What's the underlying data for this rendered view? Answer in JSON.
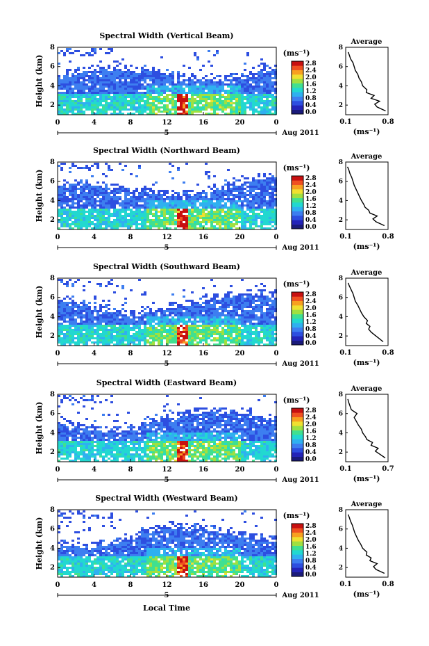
{
  "figure": {
    "ylabel": "Height (km)",
    "xlabel": "Local Time",
    "date_label": "Aug 2011",
    "day_marker": "5",
    "units": "(ms⁻¹)",
    "avg_title": "Average",
    "avg_units": "(ms⁻¹)"
  },
  "chart_data": [
    {
      "type": "heatmap",
      "title": "Spectral Width (Vertical Beam)",
      "x_ticks": [
        "0",
        "4",
        "8",
        "12",
        "16",
        "20",
        "0"
      ],
      "y_ticks": [
        "2",
        "4",
        "6",
        "8"
      ],
      "ylim": [
        1,
        8
      ],
      "colorbar_ticks": [
        "0.0",
        "0.4",
        "0.8",
        "1.2",
        "1.6",
        "2.0",
        "2.4",
        "2.8"
      ],
      "average": {
        "type": "line",
        "title": "Average",
        "x_ticks": [
          "0.1",
          "0.8"
        ],
        "y_ticks": [
          "2",
          "4",
          "6",
          "8"
        ],
        "xlim": [
          0.1,
          0.8
        ],
        "ylim": [
          1,
          8
        ],
        "x": [
          0.76,
          0.62,
          0.58,
          0.66,
          0.52,
          0.57,
          0.44,
          0.45,
          0.38,
          0.36,
          0.32,
          0.3,
          0.26,
          0.24,
          0.22,
          0.18,
          0.16,
          0.14
        ],
        "y": [
          1.4,
          1.8,
          2.1,
          2.4,
          2.7,
          3.0,
          3.3,
          3.6,
          4.0,
          4.4,
          4.8,
          5.2,
          5.6,
          6.0,
          6.4,
          6.8,
          7.2,
          7.5
        ]
      }
    },
    {
      "type": "heatmap",
      "title": "Spectral Width (Northward Beam)",
      "x_ticks": [
        "0",
        "4",
        "8",
        "12",
        "16",
        "20",
        "0"
      ],
      "y_ticks": [
        "2",
        "4",
        "6",
        "8"
      ],
      "ylim": [
        1,
        8
      ],
      "colorbar_ticks": [
        "0.0",
        "0.4",
        "0.8",
        "1.2",
        "1.6",
        "2.0",
        "2.4",
        "2.8"
      ],
      "average": {
        "type": "line",
        "title": "Average",
        "x_ticks": [
          "0.1",
          "0.8"
        ],
        "y_ticks": [
          "2",
          "4",
          "6",
          "8"
        ],
        "xlim": [
          0.1,
          0.8
        ],
        "ylim": [
          1,
          8
        ],
        "x": [
          0.74,
          0.6,
          0.55,
          0.62,
          0.5,
          0.48,
          0.42,
          0.4,
          0.36,
          0.33,
          0.3,
          0.27,
          0.24,
          0.22,
          0.2,
          0.17,
          0.15,
          0.13
        ],
        "y": [
          1.4,
          1.8,
          2.1,
          2.4,
          2.7,
          3.0,
          3.3,
          3.6,
          4.0,
          4.4,
          4.8,
          5.2,
          5.6,
          6.0,
          6.4,
          6.8,
          7.2,
          7.5
        ]
      }
    },
    {
      "type": "heatmap",
      "title": "Spectral Width (Southward Beam)",
      "x_ticks": [
        "0",
        "4",
        "8",
        "12",
        "16",
        "20",
        "0"
      ],
      "y_ticks": [
        "2",
        "4",
        "6",
        "8"
      ],
      "ylim": [
        1,
        8
      ],
      "colorbar_ticks": [
        "0.0",
        "0.4",
        "0.8",
        "1.2",
        "1.6",
        "2.0",
        "2.4",
        "2.8"
      ],
      "average": {
        "type": "line",
        "title": "Average",
        "x_ticks": [
          "0.1",
          "0.8"
        ],
        "y_ticks": [
          "2",
          "4",
          "6",
          "8"
        ],
        "xlim": [
          0.1,
          0.8
        ],
        "ylim": [
          1,
          8
        ],
        "x": [
          0.72,
          0.64,
          0.58,
          0.52,
          0.48,
          0.5,
          0.44,
          0.46,
          0.4,
          0.36,
          0.33,
          0.3,
          0.26,
          0.24,
          0.22,
          0.19,
          0.16,
          0.14
        ],
        "y": [
          1.4,
          1.8,
          2.1,
          2.4,
          2.7,
          3.0,
          3.3,
          3.6,
          4.0,
          4.4,
          4.8,
          5.2,
          5.6,
          6.0,
          6.4,
          6.8,
          7.2,
          7.5
        ]
      }
    },
    {
      "type": "heatmap",
      "title": "Spectral Width (Eastward Beam)",
      "x_ticks": [
        "0",
        "4",
        "8",
        "12",
        "16",
        "20",
        "0"
      ],
      "y_ticks": [
        "2",
        "4",
        "6",
        "8"
      ],
      "ylim": [
        1,
        8
      ],
      "colorbar_ticks": [
        "0.0",
        "0.4",
        "0.8",
        "1.2",
        "1.6",
        "2.0",
        "2.4",
        "2.8"
      ],
      "average": {
        "type": "line",
        "title": "Average",
        "x_ticks": [
          "0.1",
          "0.7"
        ],
        "y_ticks": [
          "2",
          "4",
          "6",
          "8"
        ],
        "xlim": [
          0.1,
          0.7
        ],
        "ylim": [
          1,
          8
        ],
        "x": [
          0.66,
          0.58,
          0.52,
          0.56,
          0.46,
          0.48,
          0.4,
          0.38,
          0.34,
          0.32,
          0.28,
          0.25,
          0.22,
          0.26,
          0.18,
          0.16,
          0.14,
          0.13
        ],
        "y": [
          1.4,
          1.8,
          2.1,
          2.4,
          2.7,
          3.0,
          3.3,
          3.6,
          4.0,
          4.4,
          4.8,
          5.2,
          5.6,
          6.0,
          6.4,
          6.8,
          7.2,
          7.5
        ]
      }
    },
    {
      "type": "heatmap",
      "title": "Spectral Width (Westward Beam)",
      "x_ticks": [
        "0",
        "4",
        "8",
        "12",
        "16",
        "20",
        "0"
      ],
      "y_ticks": [
        "2",
        "4",
        "6",
        "8"
      ],
      "ylim": [
        1,
        8
      ],
      "colorbar_ticks": [
        "0.0",
        "0.4",
        "0.8",
        "1.2",
        "1.6",
        "2.0",
        "2.4",
        "2.8"
      ],
      "average": {
        "type": "line",
        "title": "Average",
        "x_ticks": [
          "0.1",
          "0.8"
        ],
        "y_ticks": [
          "2",
          "4",
          "6",
          "8"
        ],
        "xlim": [
          0.1,
          0.8
        ],
        "ylim": [
          1,
          8
        ],
        "x": [
          0.74,
          0.6,
          0.56,
          0.62,
          0.5,
          0.52,
          0.44,
          0.45,
          0.38,
          0.35,
          0.31,
          0.28,
          0.25,
          0.23,
          0.21,
          0.18,
          0.16,
          0.14
        ],
        "y": [
          1.4,
          1.8,
          2.1,
          2.4,
          2.7,
          3.0,
          3.3,
          3.6,
          4.0,
          4.4,
          4.8,
          5.2,
          5.6,
          6.0,
          6.4,
          6.8,
          7.2,
          7.5
        ]
      }
    }
  ]
}
